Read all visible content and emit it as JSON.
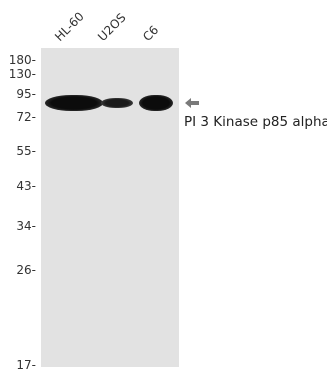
{
  "lanes": [
    {
      "label": "HL-60"
    },
    {
      "label": "U2OS"
    },
    {
      "label": "C6"
    }
  ],
  "markers": [
    {
      "label": "180-"
    },
    {
      "label": "130-"
    },
    {
      "label": "95-"
    },
    {
      "label": "72-"
    },
    {
      "label": "55-"
    },
    {
      "label": "43-"
    },
    {
      "label": "34-"
    },
    {
      "label": "26-"
    },
    {
      "label": "17-"
    }
  ],
  "target": {
    "label": "PI 3 Kinase p85 alpha",
    "icon": "left-arrow-icon"
  },
  "colors": {
    "membrane": "#e2e2e2",
    "band": "#151515",
    "arrow": "#7a7a7a"
  }
}
